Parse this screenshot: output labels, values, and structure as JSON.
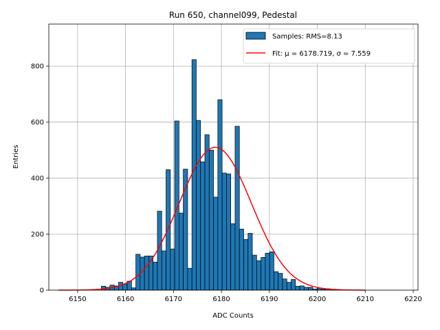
{
  "chart_data": {
    "type": "bar",
    "title": "Run 650, channel099, Pedestal",
    "xlabel": "ADC Counts",
    "ylabel": "Entries",
    "xlim": [
      6144,
      6221
    ],
    "ylim": [
      0,
      950
    ],
    "xticks": [
      6150,
      6160,
      6170,
      6180,
      6190,
      6200,
      6210,
      6220
    ],
    "yticks": [
      0,
      200,
      400,
      600,
      800
    ],
    "grid": true,
    "legend_position": "top-right",
    "colors": {
      "bars": "#1f77b4",
      "bar_edge": "#000000",
      "fit": "#ff0000",
      "grid": "#b0b0b0"
    },
    "series": [
      {
        "name": "Samples: RMS=8.13",
        "kind": "histogram",
        "bin_width": 0.9,
        "bins": [
          {
            "x": 6155.4,
            "y": 14
          },
          {
            "x": 6156.3,
            "y": 10
          },
          {
            "x": 6157.2,
            "y": 18
          },
          {
            "x": 6158.1,
            "y": 15
          },
          {
            "x": 6159.0,
            "y": 28
          },
          {
            "x": 6159.9,
            "y": 22
          },
          {
            "x": 6160.8,
            "y": 32
          },
          {
            "x": 6161.7,
            "y": 8
          },
          {
            "x": 6162.6,
            "y": 128
          },
          {
            "x": 6163.5,
            "y": 118
          },
          {
            "x": 6164.4,
            "y": 122
          },
          {
            "x": 6165.3,
            "y": 122
          },
          {
            "x": 6166.2,
            "y": 100
          },
          {
            "x": 6167.1,
            "y": 282
          },
          {
            "x": 6168.0,
            "y": 140
          },
          {
            "x": 6168.9,
            "y": 430
          },
          {
            "x": 6169.8,
            "y": 147
          },
          {
            "x": 6170.7,
            "y": 604
          },
          {
            "x": 6171.6,
            "y": 275
          },
          {
            "x": 6172.5,
            "y": 432
          },
          {
            "x": 6173.4,
            "y": 78
          },
          {
            "x": 6174.3,
            "y": 823
          },
          {
            "x": 6175.2,
            "y": 606
          },
          {
            "x": 6176.1,
            "y": 458
          },
          {
            "x": 6177.0,
            "y": 555
          },
          {
            "x": 6177.9,
            "y": 500
          },
          {
            "x": 6178.8,
            "y": 332
          },
          {
            "x": 6179.7,
            "y": 680
          },
          {
            "x": 6180.6,
            "y": 418
          },
          {
            "x": 6181.5,
            "y": 415
          },
          {
            "x": 6182.4,
            "y": 237
          },
          {
            "x": 6183.3,
            "y": 585
          },
          {
            "x": 6184.2,
            "y": 218
          },
          {
            "x": 6185.1,
            "y": 181
          },
          {
            "x": 6186.0,
            "y": 203
          },
          {
            "x": 6186.9,
            "y": 125
          },
          {
            "x": 6187.8,
            "y": 105
          },
          {
            "x": 6188.7,
            "y": 117
          },
          {
            "x": 6189.6,
            "y": 132
          },
          {
            "x": 6190.5,
            "y": 137
          },
          {
            "x": 6191.4,
            "y": 66
          },
          {
            "x": 6192.3,
            "y": 60
          },
          {
            "x": 6193.2,
            "y": 40
          },
          {
            "x": 6194.1,
            "y": 28
          },
          {
            "x": 6195.0,
            "y": 38
          },
          {
            "x": 6195.9,
            "y": 14
          },
          {
            "x": 6196.8,
            "y": 15
          },
          {
            "x": 6197.7,
            "y": 10
          },
          {
            "x": 6198.6,
            "y": 10
          },
          {
            "x": 6199.5,
            "y": 4
          },
          {
            "x": 6200.4,
            "y": 7
          },
          {
            "x": 6201.3,
            "y": 3
          },
          {
            "x": 6202.2,
            "y": 5
          },
          {
            "x": 6203.1,
            "y": 2
          },
          {
            "x": 6204.0,
            "y": 3
          },
          {
            "x": 6204.9,
            "y": 1
          }
        ]
      },
      {
        "name": "Fit: μ = 6178.719, σ = 7.559",
        "kind": "gaussian-fit",
        "mu": 6178.719,
        "sigma": 7.559,
        "amplitude": 510,
        "x_range": [
          6146,
          6210
        ]
      }
    ]
  }
}
